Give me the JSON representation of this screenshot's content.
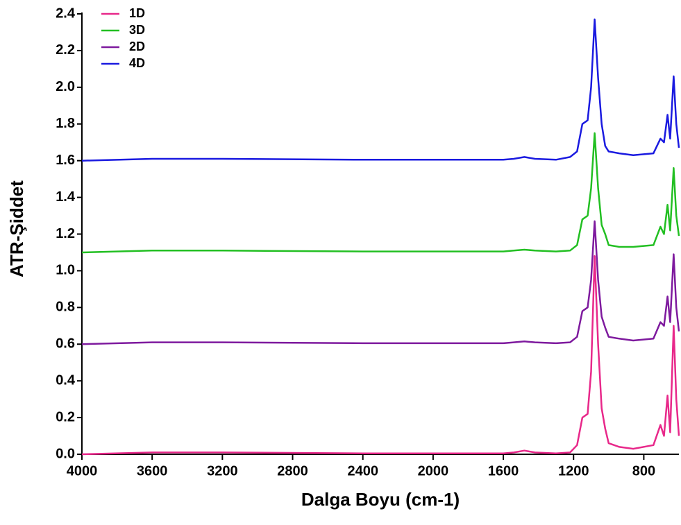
{
  "chart_data": {
    "type": "line",
    "x_label": "Dalga Boyu (cm-1)",
    "y_label": "ATR-Şiddet",
    "x": [
      4000,
      3600,
      3200,
      2400,
      1600,
      1540,
      1480,
      1420,
      1300,
      1220,
      1180,
      1150,
      1120,
      1100,
      1080,
      1060,
      1040,
      1020,
      1000,
      940,
      860,
      745,
      705,
      685,
      665,
      650,
      630,
      615,
      600
    ],
    "series": [
      {
        "name": "1D",
        "color": "#e8288a",
        "values": [
          0,
          0.01,
          0.01,
          0.005,
          0.005,
          0.01,
          0.02,
          0.01,
          0.005,
          0.01,
          0.05,
          0.2,
          0.22,
          0.45,
          1.08,
          0.6,
          0.25,
          0.14,
          0.06,
          0.04,
          0.03,
          0.05,
          0.16,
          0.1,
          0.32,
          0.12,
          0.7,
          0.3,
          0.1
        ]
      },
      {
        "name": "3D",
        "color": "#22bf22",
        "values": [
          1.1,
          1.11,
          1.11,
          1.105,
          1.105,
          1.11,
          1.115,
          1.11,
          1.105,
          1.11,
          1.14,
          1.28,
          1.3,
          1.45,
          1.75,
          1.45,
          1.25,
          1.2,
          1.14,
          1.13,
          1.13,
          1.14,
          1.24,
          1.2,
          1.36,
          1.22,
          1.56,
          1.3,
          1.19
        ]
      },
      {
        "name": "2D",
        "color": "#7e1a9e",
        "values": [
          0.6,
          0.61,
          0.61,
          0.605,
          0.605,
          0.61,
          0.615,
          0.61,
          0.605,
          0.61,
          0.64,
          0.78,
          0.8,
          0.95,
          1.27,
          0.95,
          0.75,
          0.69,
          0.64,
          0.63,
          0.62,
          0.63,
          0.72,
          0.7,
          0.86,
          0.72,
          1.09,
          0.8,
          0.67
        ]
      },
      {
        "name": "4D",
        "color": "#1a1ae0",
        "values": [
          1.6,
          1.61,
          1.61,
          1.605,
          1.605,
          1.61,
          1.62,
          1.61,
          1.605,
          1.62,
          1.65,
          1.8,
          1.82,
          2.0,
          2.37,
          2.05,
          1.8,
          1.68,
          1.65,
          1.64,
          1.63,
          1.64,
          1.72,
          1.7,
          1.85,
          1.72,
          2.06,
          1.8,
          1.67
        ]
      }
    ],
    "xlim": [
      4000,
      600
    ],
    "xticks": [
      4000,
      3600,
      3200,
      2800,
      2400,
      2000,
      1600,
      1200,
      800
    ],
    "ylim": [
      0,
      2.4
    ],
    "yticks": [
      {
        "value": 0,
        "label": "0.0"
      },
      0.2,
      0.4,
      0.6,
      0.8,
      {
        "value": 1,
        "label": "1.0"
      },
      1.2,
      1.4,
      1.6,
      1.8,
      {
        "value": 2,
        "label": "2.0"
      },
      2.2,
      2.4
    ],
    "legend": "top-left",
    "grid": false
  }
}
